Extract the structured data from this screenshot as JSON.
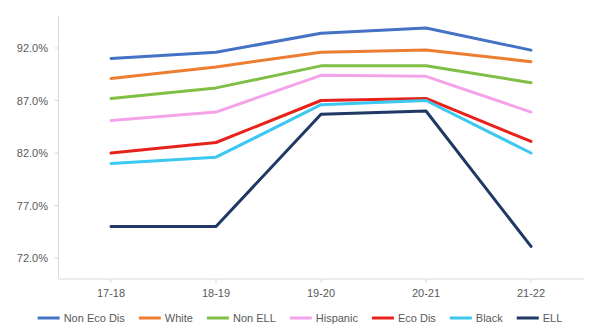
{
  "chart_data": {
    "type": "line",
    "categories": [
      "17-18",
      "18-19",
      "19-20",
      "20-21",
      "21-22"
    ],
    "series": [
      {
        "name": "Non Eco Dis",
        "color": "#4472c4",
        "values": [
          91.0,
          91.6,
          93.4,
          93.9,
          91.8
        ]
      },
      {
        "name": "White",
        "color": "#ed7d31",
        "values": [
          89.1,
          90.2,
          91.6,
          91.8,
          90.7
        ]
      },
      {
        "name": "Non ELL",
        "color": "#7fbf45",
        "values": [
          87.2,
          88.2,
          90.3,
          90.3,
          88.7
        ]
      },
      {
        "name": "Hispanic",
        "color": "#f4a3ea",
        "values": [
          85.1,
          85.9,
          89.4,
          89.3,
          85.9
        ]
      },
      {
        "name": "Eco Dis",
        "color": "#e8221b",
        "values": [
          82.0,
          83.0,
          87.0,
          87.2,
          83.1
        ]
      },
      {
        "name": "Black",
        "color": "#3cc8f0",
        "values": [
          81.0,
          81.6,
          86.6,
          87.0,
          82.0
        ]
      },
      {
        "name": "ELL",
        "color": "#1f3864",
        "values": [
          75.0,
          75.0,
          85.7,
          86.0,
          73.1
        ]
      }
    ],
    "ylim": [
      70,
      95
    ],
    "yticks": [
      {
        "value": 72,
        "label": "72.0%"
      },
      {
        "value": 77,
        "label": "77.0%"
      },
      {
        "value": 82,
        "label": "82.0%"
      },
      {
        "value": 87,
        "label": "87.0%"
      },
      {
        "value": 92,
        "label": "92.0%"
      }
    ],
    "grid": false,
    "legend": "bottom"
  }
}
